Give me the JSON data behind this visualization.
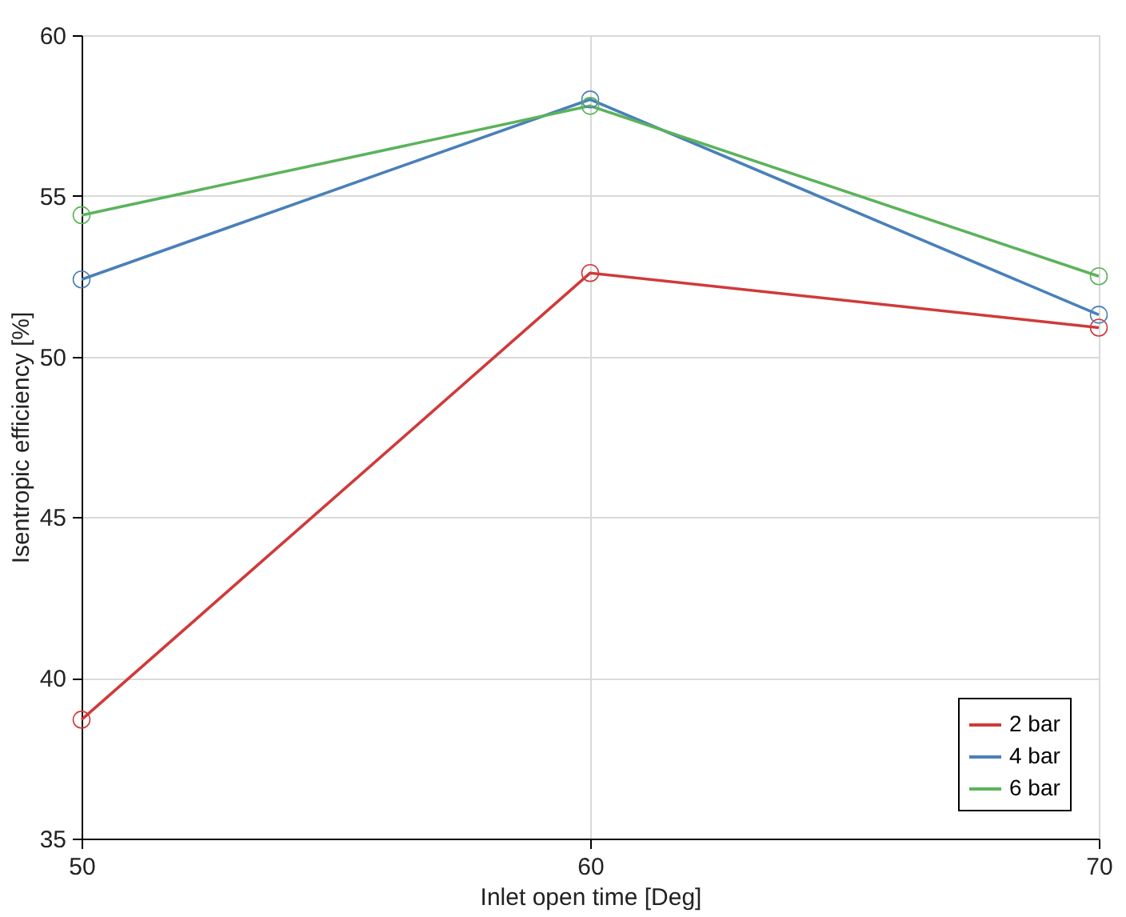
{
  "chart_data": {
    "type": "line",
    "xlabel": "Inlet open time [Deg]",
    "ylabel": "Isentropic efficiency [%]",
    "x": [
      50,
      60,
      70
    ],
    "series": [
      {
        "name": "2 bar",
        "color": "#d03a3a",
        "values": [
          38.7,
          52.6,
          50.9
        ]
      },
      {
        "name": "4 bar",
        "color": "#4a80b8",
        "values": [
          52.4,
          58.0,
          51.3
        ]
      },
      {
        "name": "6 bar",
        "color": "#5cb35a",
        "values": [
          54.4,
          57.8,
          52.5
        ]
      }
    ],
    "xlim": [
      50,
      70
    ],
    "xticks": [
      50,
      60,
      70
    ],
    "ylim": [
      35,
      60
    ],
    "yticks": [
      35,
      40,
      45,
      50,
      55,
      60
    ],
    "grid": true,
    "legend": "bottom right",
    "marker": "circle",
    "line_style": "solid"
  }
}
